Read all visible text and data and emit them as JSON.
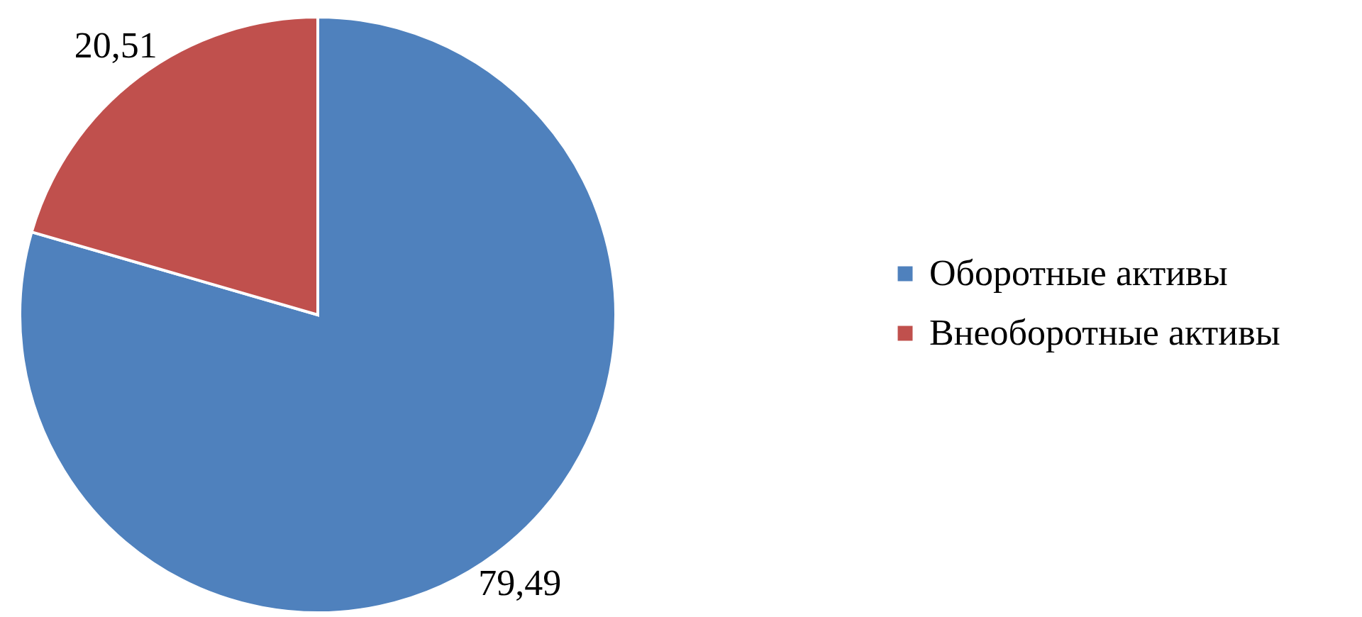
{
  "chart_data": {
    "type": "pie",
    "categories": [
      "Оборотные активы",
      "Внеоборотные активы"
    ],
    "values": [
      79.49,
      20.51
    ],
    "colors": [
      "#4f81bd",
      "#c0504d"
    ],
    "value_labels": [
      "79,49",
      "20,51"
    ],
    "legend": "right"
  }
}
